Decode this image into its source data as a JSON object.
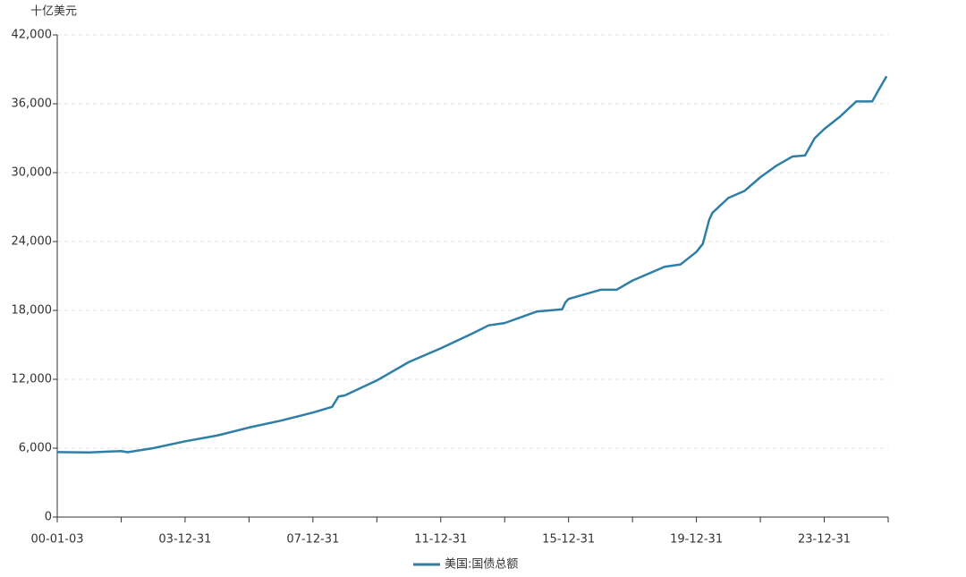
{
  "chart_data": {
    "type": "line",
    "y_axis_label": "十亿美元",
    "x": [
      2000,
      2001,
      2002,
      2002.2,
      2003,
      2004,
      2005,
      2006,
      2007,
      2008,
      2008.6,
      2008.8,
      2009,
      2010,
      2011,
      2012,
      2013,
      2013.5,
      2014,
      2015,
      2015.8,
      2015.9,
      2016,
      2017,
      2017.5,
      2018,
      2019,
      2019.5,
      2020,
      2020.2,
      2020.4,
      2020.5,
      2021,
      2021.5,
      2022,
      2022.5,
      2023,
      2023.4,
      2023.7,
      2024,
      2024.5,
      2025,
      2025.5,
      2025.7,
      2025.95
    ],
    "series": [
      {
        "name": "美国:国债总额",
        "color": "#2e7ea6",
        "values": [
          5660,
          5630,
          5750,
          5650,
          6000,
          6600,
          7100,
          7800,
          8400,
          9100,
          9600,
          10500,
          10600,
          11900,
          13500,
          14700,
          16000,
          16700,
          16900,
          17900,
          18100,
          18700,
          19000,
          19800,
          19800,
          20600,
          21800,
          22000,
          23100,
          23800,
          25900,
          26500,
          27800,
          28400,
          29600,
          30600,
          31400,
          31500,
          33000,
          33800,
          34900,
          36200,
          36200,
          37200,
          38400
        ]
      }
    ],
    "xlim": [
      2000,
      2026
    ],
    "xticks": [
      {
        "value": 2000,
        "label": "00-01-03"
      },
      {
        "value": 2004,
        "label": "03-12-31"
      },
      {
        "value": 2008,
        "label": "07-12-31"
      },
      {
        "value": 2012,
        "label": "11-12-31"
      },
      {
        "value": 2016,
        "label": "15-12-31"
      },
      {
        "value": 2020,
        "label": "19-12-31"
      },
      {
        "value": 2024,
        "label": "23-12-31"
      }
    ],
    "minor_xticks": [
      2002,
      2006,
      2010,
      2014,
      2018,
      2022,
      2026
    ],
    "ylim": [
      0,
      42000
    ],
    "yticks": [
      {
        "value": 0,
        "label": "0"
      },
      {
        "value": 6000,
        "label": "6,000"
      },
      {
        "value": 12000,
        "label": "12,000"
      },
      {
        "value": 18000,
        "label": "18,000"
      },
      {
        "value": 24000,
        "label": "24,000"
      },
      {
        "value": 30000,
        "label": "30,000"
      },
      {
        "value": 36000,
        "label": "36,000"
      },
      {
        "value": 42000,
        "label": "42,000"
      }
    ],
    "grid": true
  }
}
